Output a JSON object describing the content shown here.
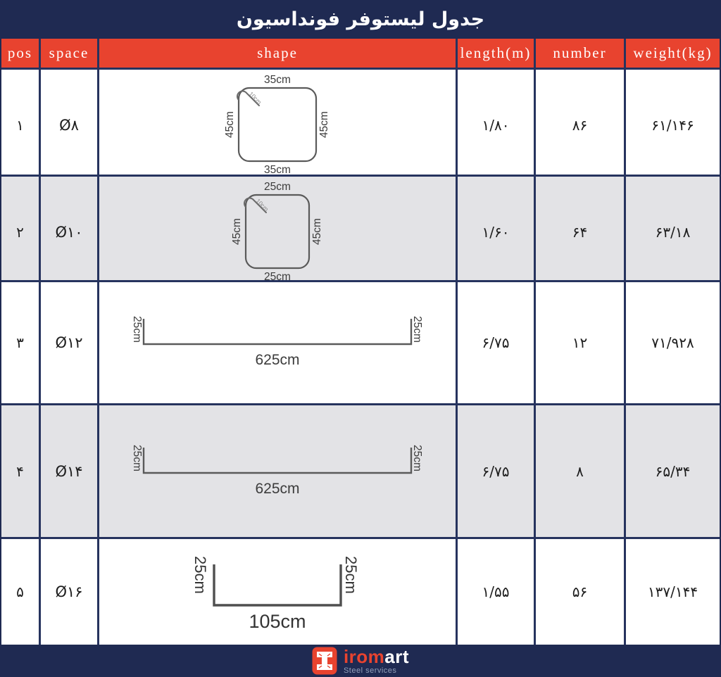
{
  "title": "جدول لیستوفر فونداسیون",
  "colors": {
    "navy": "#1f2a52",
    "header_red": "#e8432f",
    "row_gray": "#e3e3e6",
    "row_white": "#ffffff",
    "grid_border": "#26335e",
    "shape_line": "#5a5a5a",
    "logo_red": "#e8432f",
    "tagline_gray": "#93a0ba"
  },
  "header": {
    "pos": "pos",
    "space": "space",
    "shape": "shape",
    "length": "length(m)",
    "number": "number",
    "weight": "weight(kg)"
  },
  "rows": [
    {
      "pos": "۱",
      "space": "Ø۸",
      "length": "۱/۸۰",
      "number": "۸۶",
      "weight": "۶۱/۱۴۶",
      "shape": {
        "kind": "stirrup",
        "top": "35cm",
        "bottom": "35cm",
        "left": "45cm",
        "right": "45cm",
        "hook": "10cm"
      }
    },
    {
      "pos": "۲",
      "space": "Ø۱۰",
      "length": "۱/۶۰",
      "number": "۶۴",
      "weight": "۶۳/۱۸",
      "shape": {
        "kind": "stirrup",
        "top": "25cm",
        "bottom": "25cm",
        "left": "45cm",
        "right": "45cm",
        "hook": "10cm"
      }
    },
    {
      "pos": "۳",
      "space": "Ø۱۲",
      "length": "۶/۷۵",
      "number": "۱۲",
      "weight": "۷۱/۹۲۸",
      "shape": {
        "kind": "bar",
        "main": "625cm",
        "left_end": "25cm",
        "right_end": "25cm"
      }
    },
    {
      "pos": "۴",
      "space": "Ø۱۴",
      "length": "۶/۷۵",
      "number": "۸",
      "weight": "۶۵/۳۴",
      "shape": {
        "kind": "bar",
        "main": "625cm",
        "left_end": "25cm",
        "right_end": "25cm"
      }
    },
    {
      "pos": "۵",
      "space": "Ø۱۶",
      "length": "۱/۵۵",
      "number": "۵۶",
      "weight": "۱۳۷/۱۴۴",
      "shape": {
        "kind": "ubar",
        "main": "105cm",
        "left_end": "25cm",
        "right_end": "25cm"
      }
    }
  ],
  "footer": {
    "brand_left": "irom",
    "brand_right": "art",
    "tagline": "Steel services"
  }
}
